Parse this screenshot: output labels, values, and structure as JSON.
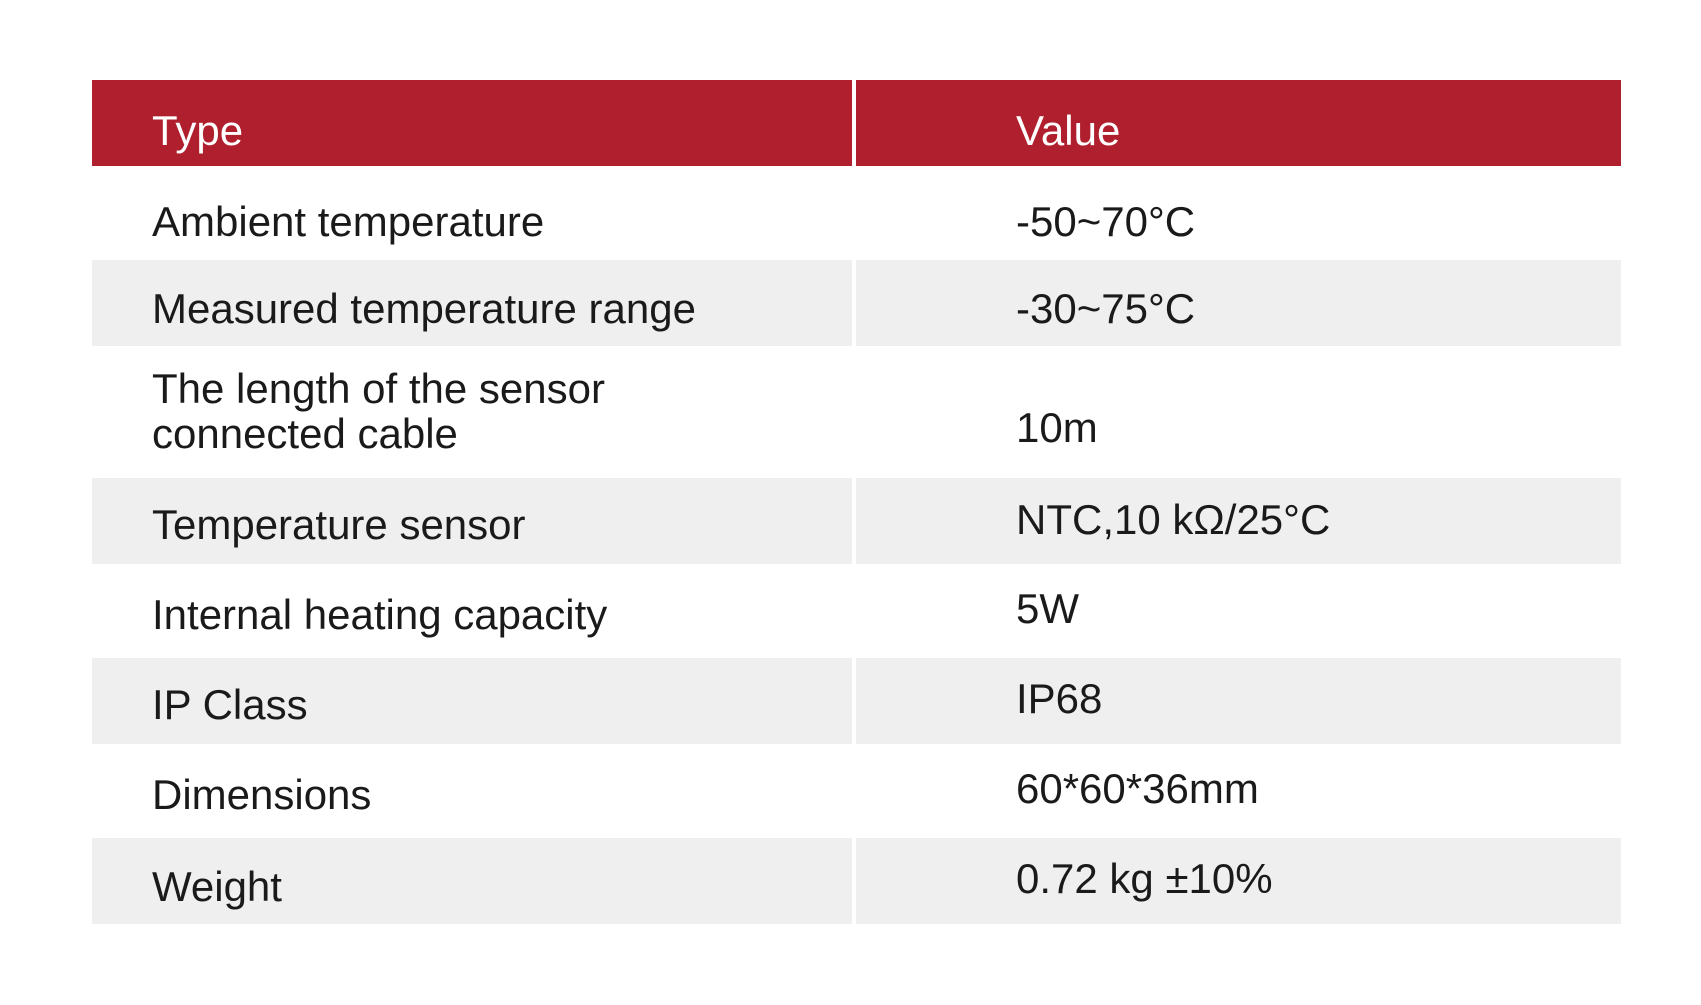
{
  "table": {
    "header": {
      "type": "Type",
      "value": "Value"
    },
    "rows": [
      {
        "type": "Ambient temperature",
        "value": "-50~70°C"
      },
      {
        "type": "Measured temperature range",
        "value": "-30~75°C"
      },
      {
        "type": "The length of the sensor connected cable",
        "value": "10m"
      },
      {
        "type": "Temperature sensor",
        "value": "NTC,10 kΩ/25°C"
      },
      {
        "type": "Internal heating capacity",
        "value": "5W"
      },
      {
        "type": "IP Class",
        "value": "IP68"
      },
      {
        "type": "Dimensions",
        "value": "60*60*36mm"
      },
      {
        "type": "Weight",
        "value": "0.72 kg ±10%"
      }
    ]
  },
  "colors": {
    "header_background": "#b01f2d",
    "header_text": "#ffffff",
    "shaded_row": "#efefef",
    "text": "#1a1a1a"
  }
}
